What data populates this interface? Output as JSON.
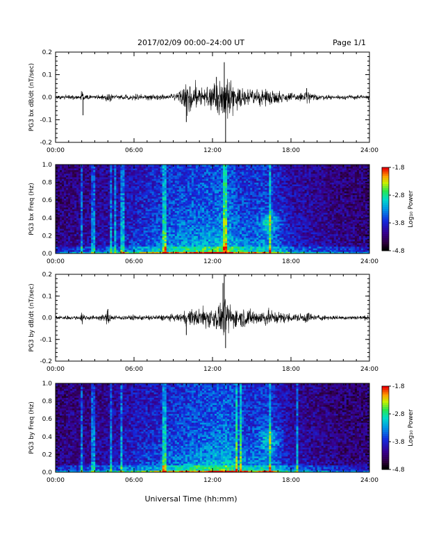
{
  "header": {
    "title": "2017/02/09   00:00–24:00 UT",
    "page": "Page 1/1"
  },
  "footer": {
    "xlabel": "Universal Time (hh:mm)"
  },
  "colorbar": {
    "label": "Log₁₀ Power",
    "range": [
      -4.8,
      -1.8
    ],
    "ticks": [
      "-1.8",
      "-2.8",
      "-3.8",
      "-4.8"
    ]
  },
  "colors": {
    "ink": "#000000"
  },
  "chart_data": [
    {
      "type": "line",
      "ylabel": "PG3 bx dB/dt (nT/sec)",
      "xlim": [
        0,
        24
      ],
      "ylim": [
        -0.2,
        0.2
      ],
      "xticks": [
        "00:00",
        "06:00",
        "12:00",
        "18:00",
        "24:00"
      ],
      "yticks": [
        "-0.2",
        "-0.1",
        "0.0",
        "0.1",
        "0.2"
      ],
      "series": [
        {
          "values_note_hours_amplitude": "envelope",
          "envelope": [
            [
              0,
              0.01
            ],
            [
              1,
              0.01
            ],
            [
              1.9,
              0.01
            ],
            [
              2.0,
              0.045
            ],
            [
              2.2,
              0.012
            ],
            [
              3.0,
              0.01
            ],
            [
              3.8,
              0.012
            ],
            [
              4.0,
              0.03
            ],
            [
              4.3,
              0.012
            ],
            [
              5.0,
              0.01
            ],
            [
              6.0,
              0.012
            ],
            [
              7.0,
              0.012
            ],
            [
              8.0,
              0.014
            ],
            [
              9.0,
              0.016
            ],
            [
              9.5,
              0.025
            ],
            [
              10.0,
              0.06
            ],
            [
              10.5,
              0.07
            ],
            [
              11.0,
              0.06
            ],
            [
              11.5,
              0.05
            ],
            [
              12.0,
              0.055
            ],
            [
              12.8,
              0.08
            ],
            [
              13.2,
              0.11
            ],
            [
              13.6,
              0.06
            ],
            [
              14.0,
              0.04
            ],
            [
              15.0,
              0.035
            ],
            [
              16.0,
              0.035
            ],
            [
              17.0,
              0.03
            ],
            [
              18.0,
              0.02
            ],
            [
              18.8,
              0.02
            ],
            [
              19.2,
              0.035
            ],
            [
              19.6,
              0.015
            ],
            [
              21.0,
              0.01
            ],
            [
              24,
              0.01
            ]
          ],
          "spikes": [
            [
              2.1,
              -0.08
            ],
            [
              10.0,
              -0.11
            ],
            [
              12.9,
              0.155
            ],
            [
              13.0,
              -0.2
            ],
            [
              12.3,
              0.09
            ],
            [
              19.2,
              0.04
            ]
          ]
        }
      ]
    },
    {
      "type": "heatmap",
      "ylabel": "PG3 bx Freq (Hz)",
      "xlim": [
        0,
        24
      ],
      "ylim": [
        0.0,
        1.0
      ],
      "zlim": [
        -4.8,
        -1.8
      ],
      "xticks": [
        "00:00",
        "06:00",
        "12:00",
        "18:00",
        "24:00"
      ],
      "yticks": [
        "0.0",
        "0.2",
        "0.4",
        "0.6",
        "0.8",
        "1.0"
      ],
      "activity": [
        [
          0,
          0.1
        ],
        [
          2,
          0.15
        ],
        [
          4,
          0.2
        ],
        [
          6,
          0.3
        ],
        [
          8,
          0.4
        ],
        [
          10,
          0.48
        ],
        [
          12,
          0.5
        ],
        [
          13,
          0.55
        ],
        [
          14,
          0.45
        ],
        [
          15,
          0.4
        ],
        [
          16,
          0.45
        ],
        [
          17,
          0.35
        ],
        [
          18,
          0.25
        ],
        [
          20,
          0.18
        ],
        [
          22,
          0.12
        ],
        [
          24,
          0.1
        ]
      ],
      "vertical_streaks_hours": [
        2.0,
        2.9,
        4.2,
        4.6,
        5.1,
        8.3,
        13.0,
        16.4
      ],
      "blob": {
        "time_hours": 16.4,
        "freq_hz": 0.35,
        "level": 0.6
      }
    },
    {
      "type": "line",
      "ylabel": "PG3 by dB/dt (nT/sec)",
      "xlim": [
        0,
        24
      ],
      "ylim": [
        -0.2,
        0.2
      ],
      "xticks": [
        "00:00",
        "06:00",
        "12:00",
        "18:00",
        "24:00"
      ],
      "yticks": [
        "-0.2",
        "-0.1",
        "0.0",
        "0.1",
        "0.2"
      ],
      "series": [
        {
          "envelope": [
            [
              0,
              0.01
            ],
            [
              1,
              0.01
            ],
            [
              1.9,
              0.01
            ],
            [
              2.0,
              0.03
            ],
            [
              2.3,
              0.012
            ],
            [
              3.0,
              0.01
            ],
            [
              3.8,
              0.015
            ],
            [
              4.0,
              0.04
            ],
            [
              4.3,
              0.015
            ],
            [
              5.0,
              0.01
            ],
            [
              6.0,
              0.012
            ],
            [
              7.0,
              0.012
            ],
            [
              8.0,
              0.014
            ],
            [
              9.0,
              0.015
            ],
            [
              9.5,
              0.02
            ],
            [
              10.0,
              0.035
            ],
            [
              11.0,
              0.045
            ],
            [
              11.5,
              0.05
            ],
            [
              12.0,
              0.055
            ],
            [
              12.6,
              0.07
            ],
            [
              13.0,
              0.09
            ],
            [
              13.4,
              0.06
            ],
            [
              14.0,
              0.045
            ],
            [
              15.0,
              0.04
            ],
            [
              16.0,
              0.04
            ],
            [
              17.0,
              0.03
            ],
            [
              18.0,
              0.02
            ],
            [
              19.0,
              0.02
            ],
            [
              19.3,
              0.035
            ],
            [
              19.6,
              0.015
            ],
            [
              21.0,
              0.01
            ],
            [
              24,
              0.01
            ]
          ],
          "spikes": [
            [
              12.9,
              0.2
            ],
            [
              13.0,
              -0.14
            ],
            [
              12.8,
              0.16
            ],
            [
              4.0,
              0.04
            ],
            [
              10.0,
              -0.08
            ]
          ]
        }
      ]
    },
    {
      "type": "heatmap",
      "ylabel": "PG3 by Freq (Hz)",
      "xlim": [
        0,
        24
      ],
      "ylim": [
        0.0,
        1.0
      ],
      "zlim": [
        -4.8,
        -1.8
      ],
      "xticks": [
        "00:00",
        "06:00",
        "12:00",
        "18:00",
        "24:00"
      ],
      "yticks": [
        "0.0",
        "0.2",
        "0.4",
        "0.6",
        "0.8",
        "1.0"
      ],
      "activity": [
        [
          0,
          0.1
        ],
        [
          2,
          0.15
        ],
        [
          4,
          0.18
        ],
        [
          6,
          0.28
        ],
        [
          8,
          0.35
        ],
        [
          10,
          0.45
        ],
        [
          12,
          0.5
        ],
        [
          13,
          0.55
        ],
        [
          14,
          0.45
        ],
        [
          15,
          0.4
        ],
        [
          16,
          0.45
        ],
        [
          17,
          0.35
        ],
        [
          18,
          0.22
        ],
        [
          20,
          0.15
        ],
        [
          22,
          0.1
        ],
        [
          24,
          0.1
        ]
      ],
      "vertical_streaks_hours": [
        2.0,
        2.9,
        4.2,
        5.0,
        8.3,
        13.8,
        14.2,
        16.4,
        18.5
      ],
      "blob": {
        "time_hours": 16.4,
        "freq_hz": 0.38,
        "level": 0.62
      }
    }
  ]
}
